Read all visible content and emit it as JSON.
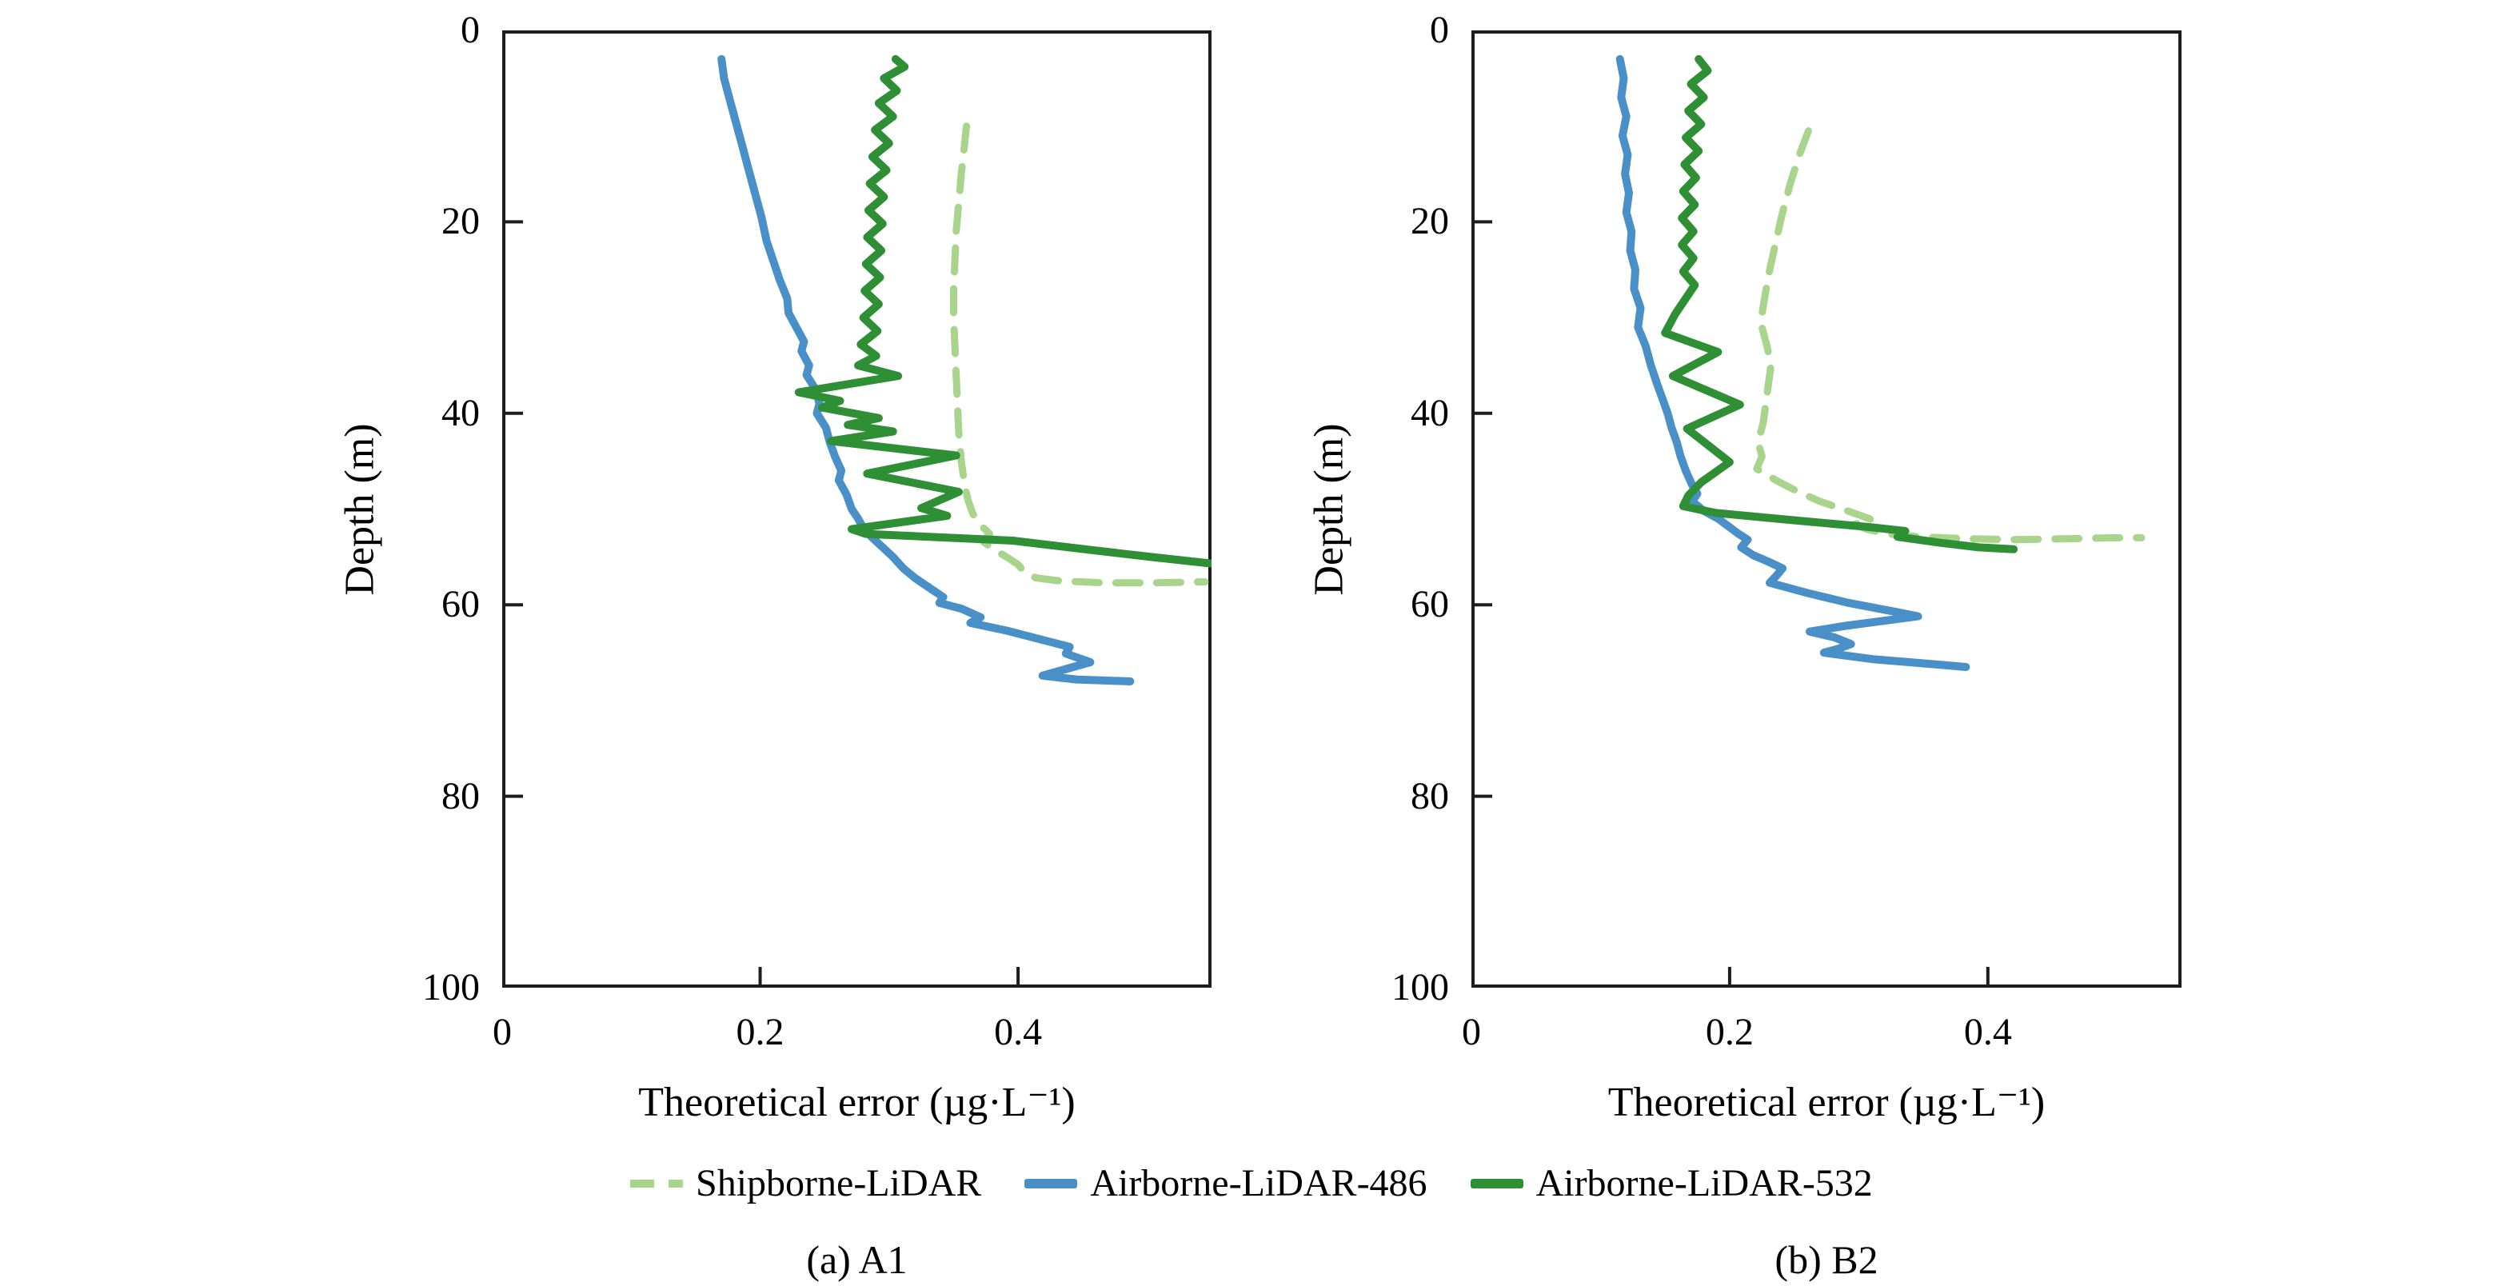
{
  "figure": {
    "xlabel": "Theoretical error (µg·L⁻¹)",
    "ylabel": "Depth (m)",
    "background": "#ffffff",
    "axis_color": "#1d1d1d",
    "captions": {
      "a": "(a) A1",
      "b": "(b) B2"
    },
    "legend": {
      "items": [
        {
          "label": "Shipborne-LiDAR",
          "color": "#a9d48c",
          "style": "dashed"
        },
        {
          "label": "Airborne-LiDAR-486",
          "color": "#4a90c8",
          "style": "solid"
        },
        {
          "label": "Airborne-LiDAR-532",
          "color": "#2f8f35",
          "style": "solid"
        }
      ]
    }
  },
  "chart_data": [
    {
      "type": "line",
      "panel": "a",
      "caption": "(a) A1",
      "xlabel": "Theoretical error (µg·L⁻¹)",
      "ylabel": "Depth (m)",
      "xlim": [
        0,
        0.55
      ],
      "ylim": [
        0,
        100
      ],
      "y_axis_direction": "inverted (depth increases downward)",
      "x_ticks": [
        0,
        0.2,
        0.4
      ],
      "y_ticks": [
        0,
        20,
        40,
        60,
        80,
        100
      ],
      "grid": false,
      "points_format": "[theoretical_error_ugL, depth_m]",
      "series": [
        {
          "name": "Shipborne-LiDAR",
          "style": "dashed",
          "color": "#a9d48c",
          "points": [
            [
              0.36,
              10
            ],
            [
              0.358,
              12.5
            ],
            [
              0.356,
              15
            ],
            [
              0.354,
              18
            ],
            [
              0.352,
              21
            ],
            [
              0.351,
              24
            ],
            [
              0.35,
              27
            ],
            [
              0.35,
              30
            ],
            [
              0.351,
              33
            ],
            [
              0.352,
              36
            ],
            [
              0.353,
              39
            ],
            [
              0.354,
              42
            ],
            [
              0.356,
              45
            ],
            [
              0.358,
              47
            ],
            [
              0.361,
              49
            ],
            [
              0.365,
              50.5
            ],
            [
              0.372,
              51.8
            ],
            [
              0.378,
              52.6
            ],
            [
              0.373,
              53.4
            ],
            [
              0.381,
              54.2
            ],
            [
              0.391,
              55.0
            ],
            [
              0.4,
              55.8
            ],
            [
              0.405,
              56.6
            ],
            [
              0.414,
              57.2
            ],
            [
              0.432,
              57.5
            ],
            [
              0.465,
              57.7
            ],
            [
              0.505,
              57.7
            ],
            [
              0.545,
              57.6
            ]
          ]
        },
        {
          "name": "Airborne-LiDAR-486",
          "style": "solid",
          "color": "#4a90c8",
          "points": [
            [
              0.17,
              3
            ],
            [
              0.172,
              5
            ],
            [
              0.176,
              7
            ],
            [
              0.181,
              9.5
            ],
            [
              0.186,
              12
            ],
            [
              0.191,
              14.5
            ],
            [
              0.196,
              17
            ],
            [
              0.201,
              19.5
            ],
            [
              0.205,
              22
            ],
            [
              0.21,
              24
            ],
            [
              0.215,
              26
            ],
            [
              0.221,
              28
            ],
            [
              0.222,
              29.5
            ],
            [
              0.228,
              31
            ],
            [
              0.234,
              32.5
            ],
            [
              0.232,
              33.5
            ],
            [
              0.238,
              35
            ],
            [
              0.236,
              36
            ],
            [
              0.243,
              37.5
            ],
            [
              0.246,
              39
            ],
            [
              0.244,
              40
            ],
            [
              0.251,
              41.5
            ],
            [
              0.254,
              43
            ],
            [
              0.258,
              44.5
            ],
            [
              0.263,
              46
            ],
            [
              0.261,
              47
            ],
            [
              0.267,
              48.5
            ],
            [
              0.271,
              50
            ],
            [
              0.276,
              51
            ],
            [
              0.28,
              52
            ],
            [
              0.287,
              53
            ],
            [
              0.295,
              54
            ],
            [
              0.303,
              55
            ],
            [
              0.311,
              56.2
            ],
            [
              0.32,
              57.2
            ],
            [
              0.331,
              58.2
            ],
            [
              0.342,
              59.2
            ],
            [
              0.339,
              59.8
            ],
            [
              0.35,
              60.2
            ],
            [
              0.356,
              60.4
            ],
            [
              0.371,
              61.3
            ],
            [
              0.363,
              61.9
            ],
            [
              0.391,
              62.7
            ],
            [
              0.417,
              63.6
            ],
            [
              0.44,
              64.4
            ],
            [
              0.437,
              65.1
            ],
            [
              0.456,
              66.0
            ],
            [
              0.419,
              67.4
            ],
            [
              0.445,
              67.8
            ],
            [
              0.487,
              68.0
            ]
          ]
        },
        {
          "name": "Airborne-LiDAR-532",
          "style": "solid",
          "color": "#2f8f35",
          "points": [
            [
              0.305,
              3
            ],
            [
              0.312,
              3.8
            ],
            [
              0.296,
              5
            ],
            [
              0.306,
              6.3
            ],
            [
              0.292,
              7.6
            ],
            [
              0.303,
              9
            ],
            [
              0.289,
              10.4
            ],
            [
              0.3,
              11.8
            ],
            [
              0.287,
              13.2
            ],
            [
              0.298,
              14.6
            ],
            [
              0.285,
              16
            ],
            [
              0.296,
              17.4
            ],
            [
              0.284,
              18.8
            ],
            [
              0.295,
              20.2
            ],
            [
              0.283,
              21.6
            ],
            [
              0.294,
              23
            ],
            [
              0.282,
              24.4
            ],
            [
              0.293,
              25.8
            ],
            [
              0.281,
              27.2
            ],
            [
              0.292,
              28.6
            ],
            [
              0.28,
              30
            ],
            [
              0.291,
              31.4
            ],
            [
              0.278,
              32.8
            ],
            [
              0.29,
              34
            ],
            [
              0.276,
              35
            ],
            [
              0.307,
              36.1
            ],
            [
              0.23,
              37.8
            ],
            [
              0.262,
              38.7
            ],
            [
              0.248,
              39.4
            ],
            [
              0.292,
              40.5
            ],
            [
              0.268,
              41.2
            ],
            [
              0.303,
              41.9
            ],
            [
              0.255,
              42.9
            ],
            [
              0.352,
              44.4
            ],
            [
              0.283,
              46.3
            ],
            [
              0.354,
              48.2
            ],
            [
              0.325,
              49.9
            ],
            [
              0.345,
              50.7
            ],
            [
              0.271,
              52.1
            ],
            [
              0.282,
              52.6
            ],
            [
              0.396,
              53.3
            ],
            [
              0.452,
              54.2
            ],
            [
              0.503,
              55.0
            ],
            [
              0.53,
              55.4
            ],
            [
              0.55,
              55.7
            ]
          ]
        }
      ]
    },
    {
      "type": "line",
      "panel": "b",
      "caption": "(b) B2",
      "xlabel": "Theoretical error (µg·L⁻¹)",
      "ylabel": "Depth (m)",
      "xlim": [
        0,
        0.55
      ],
      "ylim": [
        0,
        100
      ],
      "y_axis_direction": "inverted (depth increases downward)",
      "x_ticks": [
        0,
        0.2,
        0.4
      ],
      "y_ticks": [
        0,
        20,
        40,
        60,
        80,
        100
      ],
      "grid": false,
      "points_format": "[theoretical_error_ugL, depth_m]",
      "series": [
        {
          "name": "Shipborne-LiDAR",
          "style": "dashed",
          "color": "#a9d48c",
          "points": [
            [
              0.261,
              10.5
            ],
            [
              0.254,
              13
            ],
            [
              0.247,
              16
            ],
            [
              0.241,
              19
            ],
            [
              0.236,
              22
            ],
            [
              0.231,
              25
            ],
            [
              0.227,
              28
            ],
            [
              0.224,
              30.5
            ],
            [
              0.229,
              33
            ],
            [
              0.232,
              35
            ],
            [
              0.23,
              37
            ],
            [
              0.228,
              39
            ],
            [
              0.226,
              41
            ],
            [
              0.222,
              43
            ],
            [
              0.225,
              44.5
            ],
            [
              0.221,
              45.8
            ],
            [
              0.236,
              47
            ],
            [
              0.253,
              48.2
            ],
            [
              0.27,
              49.2
            ],
            [
              0.287,
              50.0
            ],
            [
              0.3,
              50.6
            ],
            [
              0.31,
              51.1
            ],
            [
              0.297,
              51.6
            ],
            [
              0.306,
              52.1
            ],
            [
              0.322,
              52.6
            ],
            [
              0.347,
              52.9
            ],
            [
              0.382,
              53.1
            ],
            [
              0.422,
              53.2
            ],
            [
              0.462,
              53.1
            ],
            [
              0.5,
              53.0
            ],
            [
              0.519,
              53.0
            ]
          ]
        },
        {
          "name": "Airborne-LiDAR-486",
          "style": "solid",
          "color": "#4a90c8",
          "points": [
            [
              0.115,
              3
            ],
            [
              0.118,
              5
            ],
            [
              0.116,
              7
            ],
            [
              0.12,
              9
            ],
            [
              0.117,
              11
            ],
            [
              0.121,
              13
            ],
            [
              0.119,
              15
            ],
            [
              0.122,
              17
            ],
            [
              0.12,
              19
            ],
            [
              0.124,
              21
            ],
            [
              0.123,
              23
            ],
            [
              0.127,
              25
            ],
            [
              0.126,
              27
            ],
            [
              0.131,
              29
            ],
            [
              0.129,
              31
            ],
            [
              0.135,
              33
            ],
            [
              0.139,
              35
            ],
            [
              0.144,
              37
            ],
            [
              0.148,
              38.5
            ],
            [
              0.152,
              40
            ],
            [
              0.155,
              41.5
            ],
            [
              0.159,
              43
            ],
            [
              0.162,
              44.5
            ],
            [
              0.166,
              46
            ],
            [
              0.171,
              47.5
            ],
            [
              0.175,
              48.4
            ],
            [
              0.171,
              49.2
            ],
            [
              0.18,
              50.2
            ],
            [
              0.191,
              51.0
            ],
            [
              0.199,
              51.8
            ],
            [
              0.207,
              52.6
            ],
            [
              0.214,
              53.2
            ],
            [
              0.209,
              54.0
            ],
            [
              0.218,
              54.8
            ],
            [
              0.23,
              55.5
            ],
            [
              0.241,
              56.2
            ],
            [
              0.236,
              57.0
            ],
            [
              0.231,
              57.7
            ],
            [
              0.261,
              58.8
            ],
            [
              0.292,
              59.8
            ],
            [
              0.331,
              60.8
            ],
            [
              0.346,
              61.2
            ],
            [
              0.29,
              62.2
            ],
            [
              0.262,
              62.8
            ],
            [
              0.281,
              63.4
            ],
            [
              0.294,
              64.1
            ],
            [
              0.284,
              64.6
            ],
            [
              0.273,
              65.0
            ],
            [
              0.312,
              65.7
            ],
            [
              0.357,
              66.2
            ],
            [
              0.383,
              66.5
            ]
          ]
        },
        {
          "name": "Airborne-LiDAR-532",
          "style": "solid",
          "color": "#2f8f35",
          "points": [
            [
              0.176,
              3
            ],
            [
              0.183,
              4.2
            ],
            [
              0.17,
              5.6
            ],
            [
              0.18,
              7
            ],
            [
              0.168,
              8.4
            ],
            [
              0.178,
              9.8
            ],
            [
              0.166,
              11.2
            ],
            [
              0.176,
              12.6
            ],
            [
              0.165,
              14
            ],
            [
              0.174,
              15.4
            ],
            [
              0.164,
              16.8
            ],
            [
              0.173,
              18.2
            ],
            [
              0.163,
              19.6
            ],
            [
              0.172,
              21
            ],
            [
              0.163,
              22.4
            ],
            [
              0.172,
              23.8
            ],
            [
              0.164,
              25.2
            ],
            [
              0.173,
              26.6
            ],
            [
              0.166,
              28
            ],
            [
              0.158,
              29.6
            ],
            [
              0.15,
              31.6
            ],
            [
              0.191,
              33.6
            ],
            [
              0.156,
              36.1
            ],
            [
              0.208,
              39.1
            ],
            [
              0.167,
              41.6
            ],
            [
              0.2,
              45.1
            ],
            [
              0.178,
              47.2
            ],
            [
              0.168,
              48.6
            ],
            [
              0.164,
              49.7
            ],
            [
              0.189,
              50.4
            ],
            [
              0.252,
              51.2
            ],
            [
              0.309,
              51.9
            ],
            [
              0.336,
              52.3
            ],
            [
              0.33,
              52.9
            ],
            [
              0.362,
              53.5
            ],
            [
              0.393,
              54.0
            ],
            [
              0.42,
              54.2
            ]
          ]
        }
      ]
    }
  ]
}
